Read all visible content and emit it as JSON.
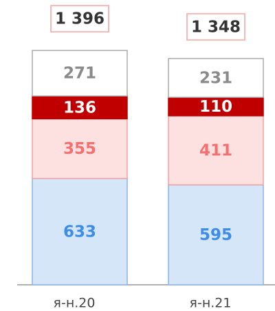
{
  "chart_data": {
    "type": "stacked_bar",
    "categories": [
      "я-н.20",
      "я-н.21"
    ],
    "series": [
      {
        "color": "#d6e6f9",
        "border": "#8ab4e8",
        "label_color": "#3d8de8",
        "values": [
          633,
          595
        ]
      },
      {
        "color": "#fde0e0",
        "border": "#f4a0a0",
        "label_color": "#f47070",
        "values": [
          355,
          411
        ]
      },
      {
        "color": "#c00000",
        "border": "#c00000",
        "label_color": "#ffffff",
        "values": [
          136,
          110
        ]
      },
      {
        "color": "#ffffff",
        "border": "#aaaaaa",
        "label_color": "#8a8a8a",
        "values": [
          271,
          231
        ]
      }
    ],
    "totals": {
      "values": [
        1396,
        1348
      ],
      "value_labels": [
        "1 396",
        "1 348"
      ],
      "border": "#f4b8b8"
    }
  }
}
